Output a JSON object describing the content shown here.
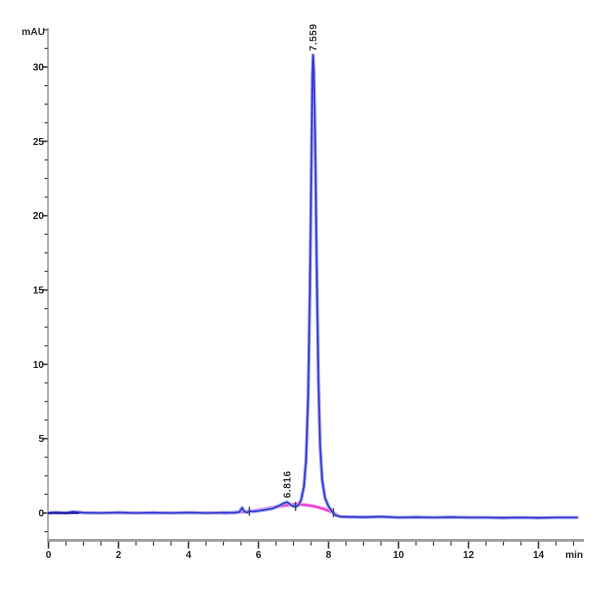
{
  "chart_data": {
    "type": "line",
    "title": "",
    "ylabel": "mAU",
    "xlabel": "min",
    "xlim": [
      0,
      15.3
    ],
    "ylim": [
      -1.8,
      32.5
    ],
    "grid": false,
    "legend": null,
    "x_major_ticks": [
      0,
      2,
      4,
      6,
      8,
      10,
      12,
      14
    ],
    "x_minor_step": 0.5,
    "y_major_ticks": [
      0,
      5,
      10,
      15,
      20,
      25,
      30
    ],
    "y_minor_step": 1.25,
    "axis_color": "#9b9b9b",
    "tick_color": "#3a3a3a",
    "series": [
      {
        "name": "integration-baseline",
        "color": "#f32ad0",
        "halo": "#fb9ae6",
        "width": 1.6,
        "points": [
          [
            5.0,
            -0.02
          ],
          [
            5.4,
            0.05
          ],
          [
            5.8,
            0.12
          ],
          [
            6.2,
            0.28
          ],
          [
            6.6,
            0.45
          ],
          [
            6.9,
            0.55
          ],
          [
            7.06,
            0.6
          ],
          [
            7.3,
            0.55
          ],
          [
            7.6,
            0.45
          ],
          [
            7.9,
            0.25
          ],
          [
            8.1,
            0.05
          ],
          [
            8.2,
            -0.05
          ]
        ]
      },
      {
        "name": "detector-signal",
        "color": "#3336cf",
        "halo": "#a9abf0",
        "width": 1.6,
        "points": [
          [
            0,
            0.0
          ],
          [
            0.2,
            0.04
          ],
          [
            0.5,
            0.0
          ],
          [
            0.7,
            0.08
          ],
          [
            1.0,
            0.02
          ],
          [
            1.5,
            0.0
          ],
          [
            2.0,
            0.03
          ],
          [
            2.5,
            0.0
          ],
          [
            3.0,
            0.02
          ],
          [
            3.5,
            0.0
          ],
          [
            4.0,
            0.03
          ],
          [
            4.5,
            0.0
          ],
          [
            5.0,
            0.02
          ],
          [
            5.3,
            0.02
          ],
          [
            5.45,
            0.06
          ],
          [
            5.53,
            0.35
          ],
          [
            5.6,
            0.08
          ],
          [
            5.68,
            0.04
          ],
          [
            5.74,
            0.12
          ],
          [
            5.85,
            0.1
          ],
          [
            6.0,
            0.15
          ],
          [
            6.2,
            0.22
          ],
          [
            6.4,
            0.3
          ],
          [
            6.6,
            0.5
          ],
          [
            6.72,
            0.65
          ],
          [
            6.816,
            0.73
          ],
          [
            6.9,
            0.58
          ],
          [
            7.0,
            0.45
          ],
          [
            7.06,
            0.42
          ],
          [
            7.15,
            0.55
          ],
          [
            7.22,
            0.9
          ],
          [
            7.3,
            1.8
          ],
          [
            7.36,
            3.6
          ],
          [
            7.42,
            8.0
          ],
          [
            7.47,
            15.0
          ],
          [
            7.51,
            23.0
          ],
          [
            7.54,
            29.5
          ],
          [
            7.559,
            30.8
          ],
          [
            7.58,
            29.8
          ],
          [
            7.62,
            25.0
          ],
          [
            7.66,
            17.0
          ],
          [
            7.71,
            9.0
          ],
          [
            7.76,
            4.5
          ],
          [
            7.82,
            2.2
          ],
          [
            7.9,
            1.0
          ],
          [
            8.0,
            0.45
          ],
          [
            8.1,
            0.1
          ],
          [
            8.2,
            -0.15
          ],
          [
            8.35,
            -0.25
          ],
          [
            9.0,
            -0.28
          ],
          [
            9.5,
            -0.25
          ],
          [
            10.0,
            -0.3
          ],
          [
            10.5,
            -0.28
          ],
          [
            11.0,
            -0.3
          ],
          [
            11.5,
            -0.28
          ],
          [
            12.0,
            -0.3
          ],
          [
            12.5,
            -0.3
          ],
          [
            13.0,
            -0.32
          ],
          [
            13.5,
            -0.3
          ],
          [
            14.0,
            -0.32
          ],
          [
            14.5,
            -0.3
          ],
          [
            15.1,
            -0.3
          ]
        ]
      },
      {
        "name": "signal-start-segment",
        "color": "#2323a8",
        "halo": null,
        "width": 2.2,
        "points": [
          [
            0,
            0.0
          ],
          [
            0.85,
            0.0
          ]
        ]
      }
    ],
    "peak_labels": [
      {
        "text": "6.816",
        "x": 6.816,
        "y": 0.73
      },
      {
        "text": "7.559",
        "x": 7.559,
        "y": 30.8
      }
    ],
    "integration_marks": [
      {
        "x": 5.74,
        "y": 0.12
      },
      {
        "x": 7.06,
        "y": 0.45
      },
      {
        "x": 8.14,
        "y": 0.02
      }
    ]
  }
}
